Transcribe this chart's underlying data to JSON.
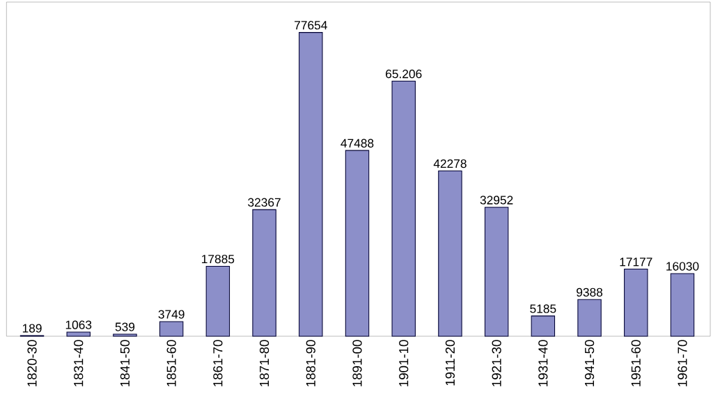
{
  "chart_data": {
    "type": "bar",
    "categories": [
      "1820-30",
      "1831-40",
      "1841-50",
      "1851-60",
      "1861-70",
      "1871-80",
      "1881-90",
      "1891-00",
      "1901-10",
      "1911-20",
      "1921-30",
      "1931-40",
      "1941-50",
      "1951-60",
      "1961-70"
    ],
    "values": [
      189,
      1063,
      539,
      3749,
      17885,
      32367,
      77654,
      47488,
      65206,
      42278,
      32952,
      5185,
      9388,
      17177,
      16030
    ],
    "value_labels": [
      "189",
      "1063",
      "539",
      "3749",
      "17885",
      "32367",
      "77654",
      "47488",
      "65.206",
      "42278",
      "32952",
      "5185",
      "9388",
      "17177",
      "16030"
    ],
    "color": "#8c8fc9"
  }
}
